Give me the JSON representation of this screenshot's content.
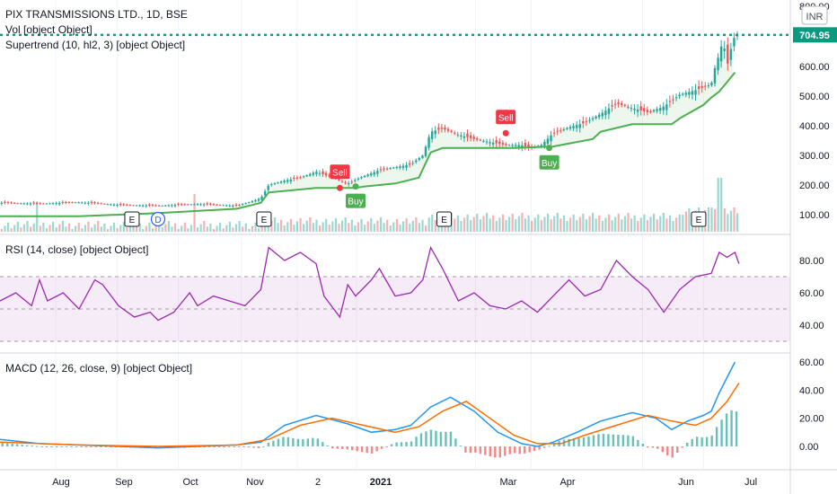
{
  "header": {
    "title": "PIX TRANSMISSIONS LTD., 1D, BSE",
    "indicators": [
      "Vol [object Object]",
      "Supertrend (10, hl2, 3) [object Object]"
    ],
    "rsi_title": "RSI (14, close) [object Object]",
    "macd_title": "MACD (12, 26, close, 9) [object Object]",
    "currency": "INR"
  },
  "colors": {
    "up": "#26a69a",
    "down": "#ef5350",
    "supertrend": "#4caf50",
    "rsi": "#9c27b0",
    "macd": "#2196f3",
    "signal": "#ff6d00",
    "price_line": "#089981"
  },
  "chart_data": [
    {
      "type": "candlestick",
      "last_price": 704.95,
      "last_price_label": "704.95",
      "y_ticks": [
        "800.00",
        "600.00",
        "500.00",
        "400.00",
        "300.00",
        "200.00",
        "100.00"
      ],
      "ylim": [
        70,
        800
      ],
      "x_ticks": [
        "Aug",
        "Sep",
        "Oct",
        "Nov",
        "2",
        "2021",
        "Mar",
        "Apr",
        "Jun",
        "Jul"
      ],
      "signals": [
        {
          "label": "Sell",
          "x": 0.43,
          "price": 190
        },
        {
          "label": "Buy",
          "x": 0.45,
          "price": 195
        },
        {
          "label": "Sell",
          "x": 0.64,
          "price": 375
        },
        {
          "label": "Buy",
          "x": 0.695,
          "price": 325
        }
      ],
      "events": [
        {
          "label": "E",
          "x": 0.167
        },
        {
          "label": "D",
          "x": 0.2
        },
        {
          "label": "E",
          "x": 0.334
        },
        {
          "label": "E",
          "x": 0.562
        },
        {
          "label": "E",
          "x": 0.884
        }
      ],
      "close_path": [
        [
          0.0,
          140
        ],
        [
          0.05,
          137
        ],
        [
          0.1,
          142
        ],
        [
          0.15,
          133
        ],
        [
          0.2,
          130
        ],
        [
          0.25,
          136
        ],
        [
          0.3,
          130
        ],
        [
          0.33,
          155
        ],
        [
          0.34,
          200
        ],
        [
          0.36,
          215
        ],
        [
          0.38,
          225
        ],
        [
          0.4,
          245
        ],
        [
          0.42,
          225
        ],
        [
          0.44,
          205
        ],
        [
          0.46,
          230
        ],
        [
          0.48,
          250
        ],
        [
          0.5,
          260
        ],
        [
          0.52,
          270
        ],
        [
          0.535,
          300
        ],
        [
          0.545,
          380
        ],
        [
          0.56,
          390
        ],
        [
          0.58,
          370
        ],
        [
          0.6,
          355
        ],
        [
          0.62,
          345
        ],
        [
          0.64,
          335
        ],
        [
          0.66,
          335
        ],
        [
          0.67,
          325
        ],
        [
          0.685,
          335
        ],
        [
          0.7,
          375
        ],
        [
          0.72,
          395
        ],
        [
          0.74,
          410
        ],
        [
          0.76,
          440
        ],
        [
          0.78,
          475
        ],
        [
          0.8,
          460
        ],
        [
          0.82,
          445
        ],
        [
          0.84,
          465
        ],
        [
          0.86,
          505
        ],
        [
          0.88,
          520
        ],
        [
          0.9,
          540
        ],
        [
          0.905,
          600
        ],
        [
          0.91,
          640
        ],
        [
          0.915,
          690
        ],
        [
          0.92,
          600
        ],
        [
          0.925,
          660
        ],
        [
          0.93,
          705
        ]
      ],
      "supertrend_path": [
        [
          0.0,
          95
        ],
        [
          0.1,
          95
        ],
        [
          0.2,
          105
        ],
        [
          0.3,
          120
        ],
        [
          0.33,
          140
        ],
        [
          0.34,
          175
        ],
        [
          0.4,
          190
        ],
        [
          0.45,
          190
        ],
        [
          0.46,
          195
        ],
        [
          0.5,
          205
        ],
        [
          0.53,
          225
        ],
        [
          0.545,
          310
        ],
        [
          0.56,
          325
        ],
        [
          0.65,
          325
        ],
        [
          0.7,
          330
        ],
        [
          0.75,
          355
        ],
        [
          0.76,
          380
        ],
        [
          0.8,
          405
        ],
        [
          0.85,
          405
        ],
        [
          0.86,
          425
        ],
        [
          0.89,
          470
        ],
        [
          0.9,
          495
        ],
        [
          0.91,
          515
        ],
        [
          0.93,
          580
        ]
      ],
      "volume_spikes": [
        [
          0.047,
          0.55
        ],
        [
          0.247,
          0.7
        ],
        [
          0.898,
          0.45
        ],
        [
          0.91,
          1.0
        ]
      ]
    },
    {
      "type": "line",
      "name": "RSI (14, close) [object Object]",
      "y_ticks": [
        "80.00",
        "60.00",
        "40.00"
      ],
      "ylim": [
        25,
        95
      ],
      "bands": [
        30,
        50,
        70
      ],
      "path": [
        [
          0.0,
          55
        ],
        [
          0.02,
          60
        ],
        [
          0.04,
          52
        ],
        [
          0.05,
          68
        ],
        [
          0.06,
          55
        ],
        [
          0.08,
          60
        ],
        [
          0.1,
          50
        ],
        [
          0.12,
          68
        ],
        [
          0.13,
          65
        ],
        [
          0.15,
          52
        ],
        [
          0.17,
          45
        ],
        [
          0.19,
          48
        ],
        [
          0.2,
          43
        ],
        [
          0.22,
          48
        ],
        [
          0.24,
          60
        ],
        [
          0.25,
          52
        ],
        [
          0.27,
          58
        ],
        [
          0.29,
          55
        ],
        [
          0.31,
          52
        ],
        [
          0.33,
          62
        ],
        [
          0.34,
          88
        ],
        [
          0.36,
          80
        ],
        [
          0.38,
          85
        ],
        [
          0.4,
          78
        ],
        [
          0.41,
          58
        ],
        [
          0.43,
          45
        ],
        [
          0.44,
          65
        ],
        [
          0.45,
          58
        ],
        [
          0.47,
          68
        ],
        [
          0.48,
          75
        ],
        [
          0.5,
          58
        ],
        [
          0.52,
          60
        ],
        [
          0.535,
          68
        ],
        [
          0.545,
          88
        ],
        [
          0.56,
          75
        ],
        [
          0.58,
          55
        ],
        [
          0.6,
          60
        ],
        [
          0.62,
          52
        ],
        [
          0.64,
          50
        ],
        [
          0.66,
          55
        ],
        [
          0.68,
          48
        ],
        [
          0.7,
          58
        ],
        [
          0.72,
          68
        ],
        [
          0.74,
          58
        ],
        [
          0.76,
          62
        ],
        [
          0.78,
          80
        ],
        [
          0.8,
          70
        ],
        [
          0.82,
          62
        ],
        [
          0.84,
          48
        ],
        [
          0.86,
          62
        ],
        [
          0.88,
          70
        ],
        [
          0.9,
          72
        ],
        [
          0.91,
          85
        ],
        [
          0.92,
          82
        ],
        [
          0.93,
          85
        ],
        [
          0.935,
          78
        ]
      ]
    },
    {
      "type": "line",
      "name": "MACD (12, 26, close, 9) [object Object]",
      "y_ticks": [
        "60.00",
        "40.00",
        "20.00",
        "0.00"
      ],
      "ylim": [
        -12,
        62
      ],
      "macd": [
        [
          0.0,
          5
        ],
        [
          0.05,
          2
        ],
        [
          0.1,
          1
        ],
        [
          0.15,
          0
        ],
        [
          0.2,
          -1
        ],
        [
          0.25,
          0
        ],
        [
          0.3,
          1
        ],
        [
          0.33,
          3
        ],
        [
          0.36,
          15
        ],
        [
          0.4,
          22
        ],
        [
          0.44,
          16
        ],
        [
          0.47,
          10
        ],
        [
          0.5,
          12
        ],
        [
          0.52,
          15
        ],
        [
          0.545,
          28
        ],
        [
          0.57,
          35
        ],
        [
          0.6,
          25
        ],
        [
          0.63,
          10
        ],
        [
          0.66,
          2
        ],
        [
          0.68,
          0
        ],
        [
          0.7,
          3
        ],
        [
          0.73,
          10
        ],
        [
          0.76,
          18
        ],
        [
          0.8,
          24
        ],
        [
          0.83,
          20
        ],
        [
          0.85,
          12
        ],
        [
          0.87,
          18
        ],
        [
          0.89,
          22
        ],
        [
          0.9,
          25
        ],
        [
          0.91,
          38
        ],
        [
          0.93,
          60
        ]
      ],
      "signal": [
        [
          0.0,
          3
        ],
        [
          0.1,
          1
        ],
        [
          0.2,
          0
        ],
        [
          0.3,
          1
        ],
        [
          0.34,
          5
        ],
        [
          0.38,
          15
        ],
        [
          0.42,
          20
        ],
        [
          0.46,
          15
        ],
        [
          0.5,
          10
        ],
        [
          0.53,
          14
        ],
        [
          0.56,
          25
        ],
        [
          0.59,
          32
        ],
        [
          0.62,
          20
        ],
        [
          0.65,
          8
        ],
        [
          0.68,
          2
        ],
        [
          0.71,
          2
        ],
        [
          0.74,
          8
        ],
        [
          0.78,
          15
        ],
        [
          0.82,
          22
        ],
        [
          0.85,
          18
        ],
        [
          0.88,
          15
        ],
        [
          0.9,
          20
        ],
        [
          0.92,
          32
        ],
        [
          0.935,
          45
        ]
      ]
    }
  ]
}
